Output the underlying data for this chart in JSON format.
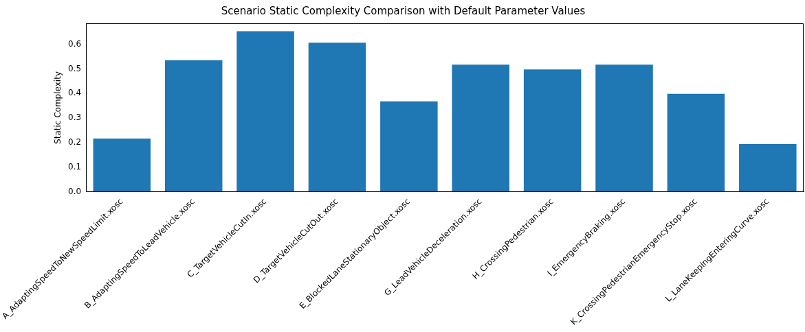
{
  "chart_data": {
    "type": "bar",
    "title": "Scenario Static Complexity Comparison with Default Parameter Values",
    "ylabel": "Static Complexity",
    "categories": [
      "A_AdaptingSpeedToNewSpeedLimit.xosc",
      "B_AdaptingSpeedToLeadVehicle.xosc",
      "C_TargetVehicleCutIn.xosc",
      "D_TargetVehicleCutOut.xosc",
      "E_BlockedLaneStationaryObject.xosc",
      "G_LeadVehicleDeceleration.xosc",
      "H_CrossingPedestrian.xosc",
      "I_EmergencyBraking.xosc",
      "K_CrossingPedestrianEmergencyStop.xosc",
      "L_LaneKeepingEnteringCurve.xosc"
    ],
    "values": [
      0.217,
      0.535,
      0.653,
      0.606,
      0.368,
      0.517,
      0.498,
      0.517,
      0.399,
      0.195
    ],
    "color": "#1f77b4",
    "ylim": [
      0,
      0.685
    ],
    "yticks": [
      {
        "value": 0,
        "label": "0.0"
      },
      {
        "value": 0.1,
        "label": "0.1"
      },
      {
        "value": 0.2,
        "label": "0.2"
      },
      {
        "value": 0.3,
        "label": "0.3"
      },
      {
        "value": 0.4,
        "label": "0.4"
      },
      {
        "value": 0.5,
        "label": "0.5"
      },
      {
        "value": 0.6,
        "label": "0.6"
      }
    ],
    "grid": false,
    "legend": false
  }
}
